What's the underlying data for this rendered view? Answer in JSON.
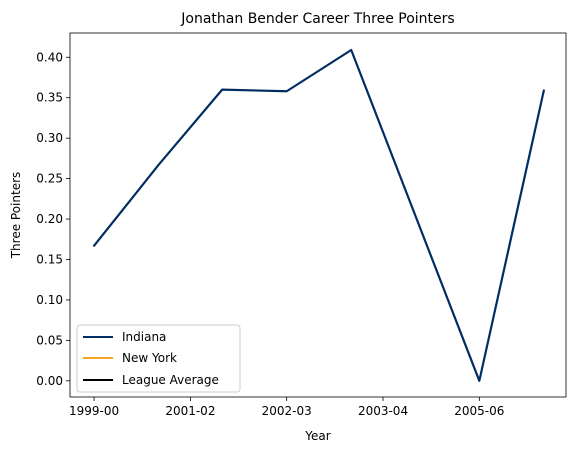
{
  "chart_data": {
    "type": "line",
    "title": "Jonathan Bender Career Three Pointers",
    "xlabel": "Year",
    "ylabel": "Three Pointers",
    "x_tick_labels": [
      "1999-00",
      "2001-02",
      "2002-03",
      "2003-04",
      "2005-06"
    ],
    "x_tick_positions": [
      0,
      1,
      2,
      3,
      4
    ],
    "xlim": [
      -0.25,
      4.9
    ],
    "ylim": [
      -0.02,
      0.43
    ],
    "y_ticks": [
      "0.00",
      "0.05",
      "0.10",
      "0.15",
      "0.20",
      "0.25",
      "0.30",
      "0.35",
      "0.40"
    ],
    "grid": false,
    "legend_position": "lower-left",
    "series": [
      {
        "name": "Indiana",
        "color": "#002d62",
        "points": [
          {
            "x": 0.0,
            "y": 0.167
          },
          {
            "x": 0.67,
            "y": 0.267
          },
          {
            "x": 1.33,
            "y": 0.36
          },
          {
            "x": 2.0,
            "y": 0.358
          },
          {
            "x": 2.67,
            "y": 0.409
          },
          {
            "x": 4.0,
            "y": 0.0
          },
          {
            "x": 4.67,
            "y": 0.359
          }
        ]
      },
      {
        "name": "New York",
        "color": "#f5a623",
        "points": []
      },
      {
        "name": "League Average",
        "color": "#000000",
        "points": []
      }
    ]
  }
}
